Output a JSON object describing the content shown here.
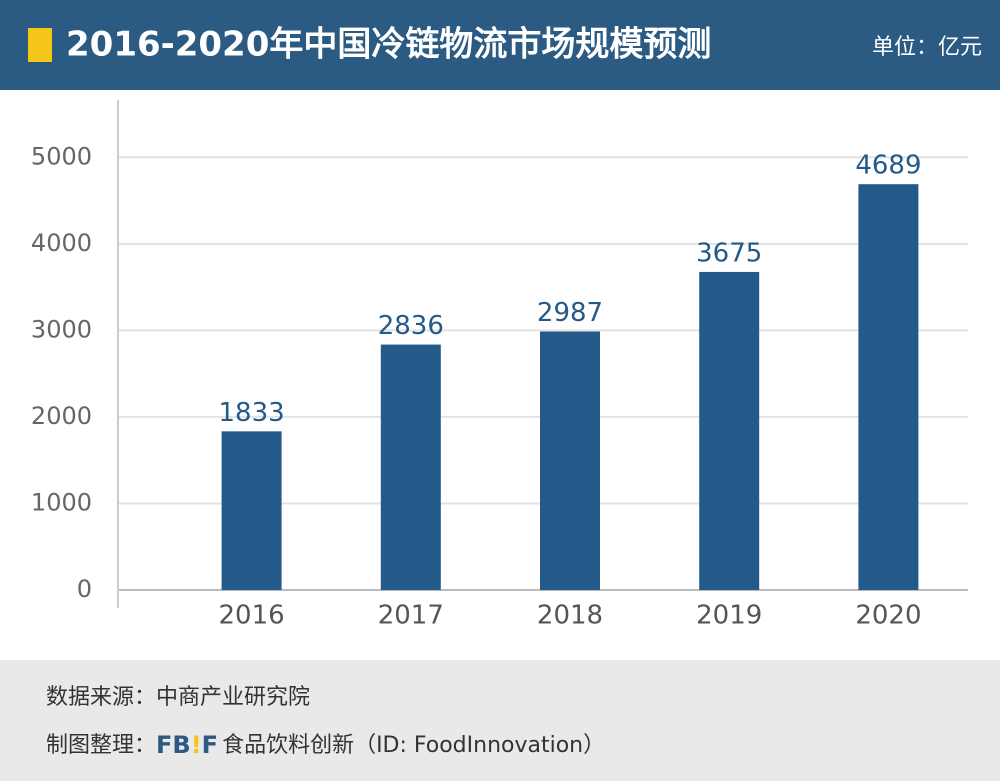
{
  "chart_data": {
    "type": "bar",
    "title": "2016-2020年中国冷链物流市场规模预测",
    "unit": "单位：亿元",
    "categories": [
      "2016",
      "2017",
      "2018",
      "2019",
      "2020"
    ],
    "values": [
      1833,
      2836,
      2987,
      3675,
      4689
    ],
    "color": "#245a8a",
    "ylim": [
      0,
      5500
    ],
    "yticks": [
      0,
      1000,
      2000,
      3000,
      4000,
      5000
    ],
    "grid": true
  },
  "footer": {
    "source": "数据来源：中商产业研究院",
    "credit_label": "制图整理：",
    "logo": [
      "FB",
      "!",
      "F"
    ],
    "credit_text": "食品饮料创新（ID: FoodInnovation）"
  }
}
